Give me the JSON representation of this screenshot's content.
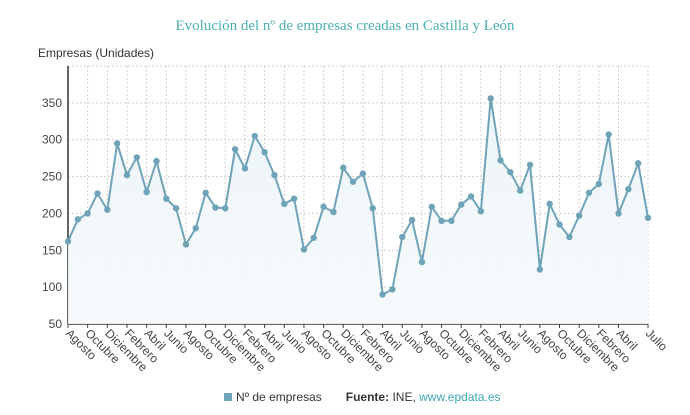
{
  "chart_data": {
    "type": "line",
    "title": "Evolución del nº de empresas creadas en Castilla y León",
    "ylabel": "Empresas (Unidades)",
    "xlabel": "",
    "ylim": [
      50,
      400
    ],
    "yticks": [
      50,
      100,
      150,
      200,
      250,
      300,
      350
    ],
    "grid": true,
    "line_color": "#6fa3b8",
    "legend_placement": "bottom",
    "x_tick_labels": [
      {
        "i": 0,
        "label": "Agosto"
      },
      {
        "i": 2,
        "label": "Octubre"
      },
      {
        "i": 4,
        "label": "Diciembre"
      },
      {
        "i": 6,
        "label": "Febrero"
      },
      {
        "i": 8,
        "label": "Abril"
      },
      {
        "i": 10,
        "label": "Junio"
      },
      {
        "i": 12,
        "label": "Agosto"
      },
      {
        "i": 14,
        "label": "Octubre"
      },
      {
        "i": 16,
        "label": "Diciembre"
      },
      {
        "i": 18,
        "label": "Febrero"
      },
      {
        "i": 20,
        "label": "Abril"
      },
      {
        "i": 22,
        "label": "Junio"
      },
      {
        "i": 24,
        "label": "Agosto"
      },
      {
        "i": 26,
        "label": "Octubre"
      },
      {
        "i": 28,
        "label": "Diciembre"
      },
      {
        "i": 30,
        "label": "Febrero"
      },
      {
        "i": 32,
        "label": "Abril"
      },
      {
        "i": 34,
        "label": "Junio"
      },
      {
        "i": 36,
        "label": "Agosto"
      },
      {
        "i": 38,
        "label": "Octubre"
      },
      {
        "i": 40,
        "label": "Diciembre"
      },
      {
        "i": 42,
        "label": "Febrero"
      },
      {
        "i": 44,
        "label": "Abril"
      },
      {
        "i": 46,
        "label": "Junio"
      },
      {
        "i": 48,
        "label": "Agosto"
      },
      {
        "i": 50,
        "label": "Octubre"
      },
      {
        "i": 52,
        "label": "Diciembre"
      },
      {
        "i": 54,
        "label": "Febrero"
      },
      {
        "i": 56,
        "label": "Abril"
      },
      {
        "i": 59,
        "label": "Julio"
      }
    ],
    "series": [
      {
        "name": "Nº de empresas",
        "values": [
          162,
          192,
          200,
          227,
          205,
          295,
          252,
          276,
          229,
          271,
          220,
          207,
          158,
          180,
          228,
          208,
          207,
          287,
          261,
          305,
          283,
          252,
          213,
          220,
          151,
          167,
          209,
          202,
          262,
          243,
          254,
          207,
          90,
          97,
          168,
          191,
          134,
          209,
          190,
          190,
          212,
          223,
          203,
          356,
          272,
          256,
          231,
          266,
          124,
          213,
          185,
          168,
          197,
          228,
          240,
          307,
          200,
          233,
          268,
          194
        ]
      }
    ]
  },
  "legend": {
    "series_label": "Nº de empresas",
    "source_label": "Fuente:",
    "source_text": "INE,",
    "source_link": "www.epdata.es"
  }
}
